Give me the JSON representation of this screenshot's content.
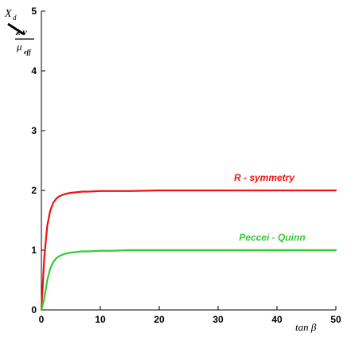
{
  "chart_data": {
    "type": "line",
    "xlabel": "tan β",
    "ylabel": {
      "symbol": "X",
      "subscript": "d",
      "numerator": "λ v",
      "denominator": "μ",
      "denominator_sub": "eff"
    },
    "xlim": [
      0,
      50
    ],
    "ylim": [
      0,
      5
    ],
    "x_ticks": [
      "0",
      "10",
      "20",
      "30",
      "40",
      "50"
    ],
    "y_ticks": [
      "0",
      "1",
      "2",
      "3",
      "4",
      "5"
    ],
    "grid": false,
    "series": [
      {
        "name": "R - symmetry",
        "color": "#ee1111",
        "x": [
          0,
          0.5,
          1,
          1.5,
          2,
          2.5,
          3,
          3.5,
          4,
          5,
          6,
          7,
          8,
          10,
          12,
          15,
          20,
          25,
          30,
          35,
          40,
          45,
          50
        ],
        "y": [
          0,
          0.89,
          1.41,
          1.66,
          1.79,
          1.86,
          1.9,
          1.92,
          1.94,
          1.96,
          1.97,
          1.98,
          1.98,
          1.99,
          1.99,
          1.99,
          2.0,
          2.0,
          2.0,
          2.0,
          2.0,
          2.0,
          2.0
        ]
      },
      {
        "name": "Peccei - Quinn",
        "color": "#33cc33",
        "x": [
          0,
          0.5,
          1,
          1.5,
          2,
          2.5,
          3,
          3.5,
          4,
          5,
          6,
          7,
          8,
          10,
          12,
          15,
          20,
          25,
          30,
          35,
          40,
          45,
          50
        ],
        "y": [
          0,
          0.2,
          0.5,
          0.69,
          0.8,
          0.86,
          0.9,
          0.92,
          0.94,
          0.96,
          0.97,
          0.98,
          0.98,
          0.99,
          0.99,
          1.0,
          1.0,
          1.0,
          1.0,
          1.0,
          1.0,
          1.0,
          1.0
        ]
      }
    ]
  }
}
